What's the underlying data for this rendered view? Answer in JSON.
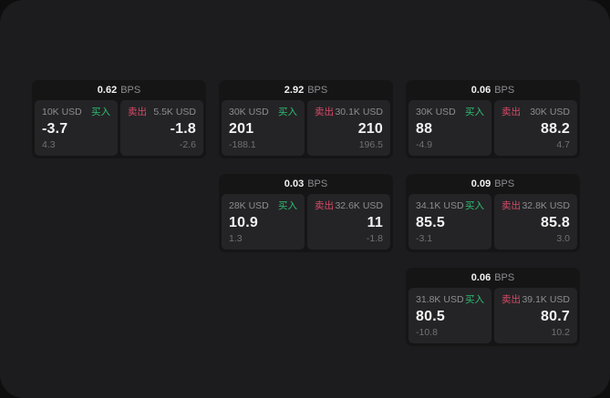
{
  "theme": {
    "outer_bg": "#0e0e0f",
    "window_bg": "#1c1c1e",
    "card_bg": "#151516",
    "tile_bg": "#242426",
    "buy_color": "#2ebd72",
    "sell_color": "#d84a68",
    "value_color": "#f2f2f2",
    "label_color": "#8d8d91",
    "muted_color": "#717175"
  },
  "labels": {
    "buy": "买入",
    "sell": "卖出",
    "bps": "BPS"
  },
  "cards": [
    {
      "bps": "0.62",
      "buy": {
        "size": "10K USD",
        "value": "-3.7",
        "delta": "4.3"
      },
      "sell": {
        "size": "5.5K USD",
        "value": "-1.8",
        "delta": "-2.6"
      }
    },
    {
      "bps": "2.92",
      "buy": {
        "size": "30K USD",
        "value": "201",
        "delta": "-188.1"
      },
      "sell": {
        "size": "30.1K USD",
        "value": "210",
        "delta": "196.5"
      }
    },
    {
      "bps": "0.06",
      "buy": {
        "size": "30K USD",
        "value": "88",
        "delta": "-4.9"
      },
      "sell": {
        "size": "30K USD",
        "value": "88.2",
        "delta": "4.7"
      }
    },
    {
      "bps": "0.03",
      "buy": {
        "size": "28K USD",
        "value": "10.9",
        "delta": "1.3"
      },
      "sell": {
        "size": "32.6K USD",
        "value": "11",
        "delta": "-1.8"
      }
    },
    {
      "bps": "0.09",
      "buy": {
        "size": "34.1K USD",
        "value": "85.5",
        "delta": "-3.1"
      },
      "sell": {
        "size": "32.8K USD",
        "value": "85.8",
        "delta": "3.0"
      }
    },
    {
      "bps": "0.06",
      "buy": {
        "size": "31.8K USD",
        "value": "80.5",
        "delta": "-10.8"
      },
      "sell": {
        "size": "39.1K USD",
        "value": "80.7",
        "delta": "10.2"
      }
    }
  ]
}
